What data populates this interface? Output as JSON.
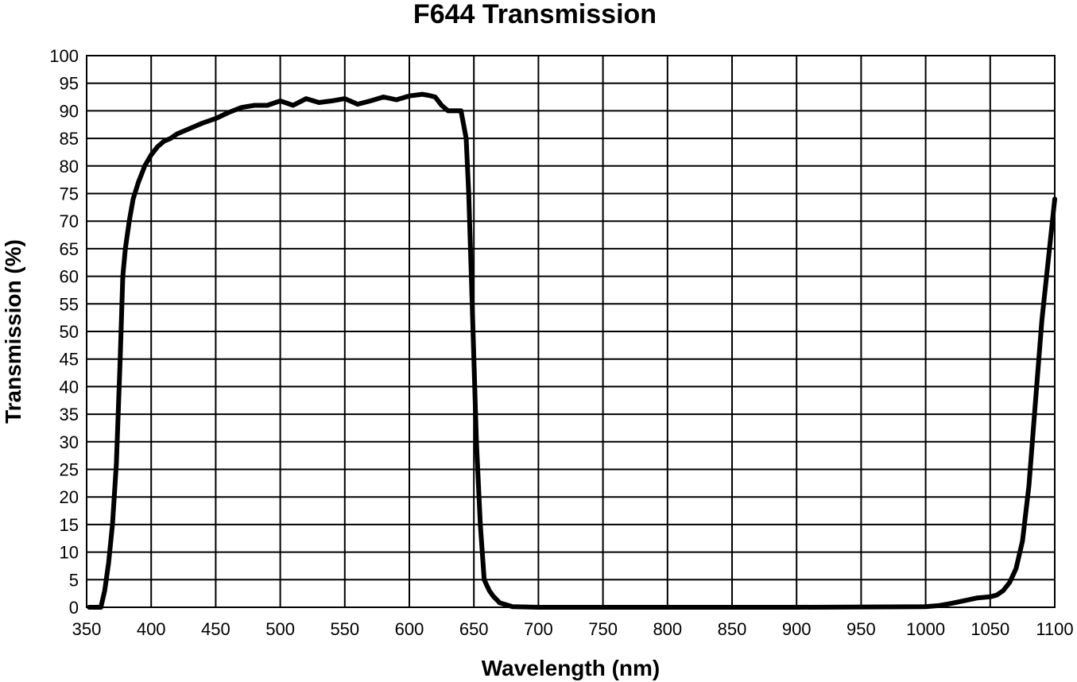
{
  "chart_data": {
    "type": "line",
    "title": "F644 Transmission",
    "xlabel": "Wavelength (nm)",
    "ylabel": "Transmission (%)",
    "xlim": [
      350,
      1100
    ],
    "ylim": [
      0,
      100
    ],
    "xticks": [
      350,
      400,
      450,
      500,
      550,
      600,
      650,
      700,
      750,
      800,
      850,
      900,
      950,
      1000,
      1050,
      1100
    ],
    "yticks": [
      0,
      5,
      10,
      15,
      20,
      25,
      30,
      35,
      40,
      45,
      50,
      55,
      60,
      65,
      70,
      75,
      80,
      85,
      90,
      95,
      100
    ],
    "grid": true,
    "line_color": "#000000",
    "series": [
      {
        "x": [
          352,
          358,
          361,
          364,
          367,
          370,
          373,
          376,
          378,
          380,
          383,
          386,
          390,
          395,
          400,
          405,
          410,
          415,
          420,
          430,
          440,
          450,
          460,
          470,
          480,
          490,
          500,
          510,
          520,
          530,
          540,
          550,
          560,
          570,
          580,
          590,
          600,
          610,
          615,
          620,
          625,
          630,
          640,
          644,
          646,
          648,
          650,
          652,
          655,
          658,
          660,
          662,
          665,
          670,
          680,
          700,
          750,
          800,
          900,
          1000,
          1010,
          1020,
          1030,
          1040,
          1050,
          1055,
          1060,
          1065,
          1070,
          1075,
          1080,
          1085,
          1090,
          1095,
          1100
        ],
        "y": [
          0,
          0,
          0,
          3,
          8,
          15,
          26,
          45,
          60,
          65,
          70,
          74,
          77,
          80,
          82,
          83.5,
          84.5,
          85,
          85.8,
          86.8,
          87.8,
          88.6,
          89.7,
          90.6,
          91,
          91,
          91.8,
          91,
          92.2,
          91.5,
          91.8,
          92.2,
          91.2,
          91.8,
          92.5,
          92,
          92.7,
          93,
          92.8,
          92.5,
          91,
          90,
          90,
          85,
          75,
          60,
          45,
          30,
          15,
          5,
          4,
          3,
          2,
          0.8,
          0.1,
          0,
          0,
          0,
          0,
          0.1,
          0.3,
          0.7,
          1.2,
          1.7,
          1.9,
          2.2,
          3,
          4.5,
          7,
          12,
          22,
          37,
          52,
          63,
          74
        ]
      }
    ]
  }
}
